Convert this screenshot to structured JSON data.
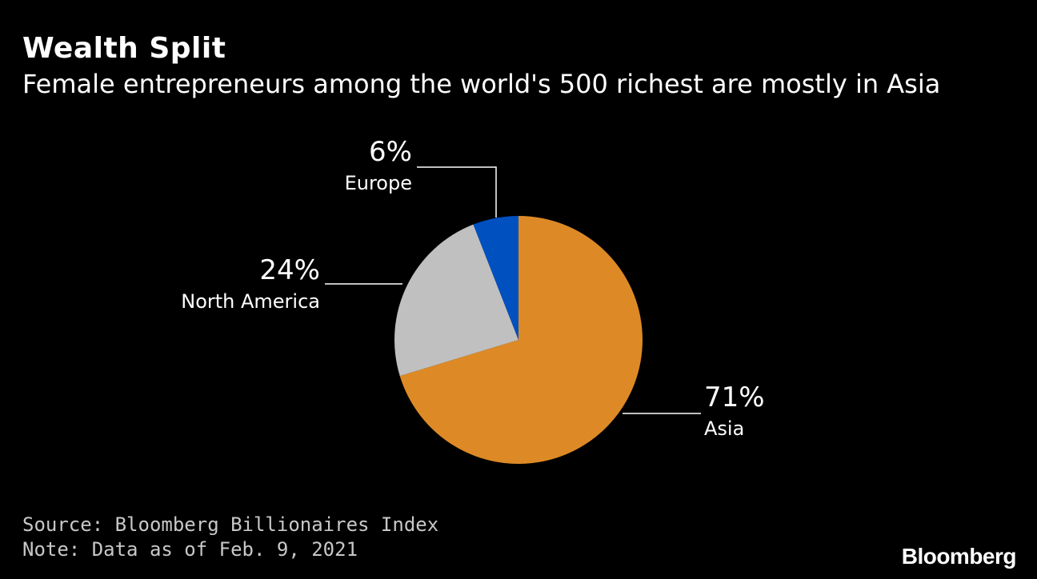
{
  "header": {
    "title": "Wealth Split",
    "subtitle": "Female entrepreneurs among the world's 500 richest are mostly in Asia"
  },
  "chart_data": {
    "type": "pie",
    "start_angle": "12 o'clock",
    "direction": "clockwise",
    "slices": [
      {
        "label": "Asia",
        "value": 71,
        "value_label": "71%",
        "color": "#dd8a26"
      },
      {
        "label": "North America",
        "value": 24,
        "value_label": "24%",
        "color": "#c0c0c0"
      },
      {
        "label": "Europe",
        "value": 6,
        "value_label": "6%",
        "color": "#0050c0"
      }
    ],
    "leader_line_color": "#ffffff"
  },
  "footer": {
    "source": "Source: Bloomberg Billionaires Index",
    "note": "Note: Data as of Feb. 9, 2021"
  },
  "brand": {
    "logo_text": "Bloomberg"
  }
}
